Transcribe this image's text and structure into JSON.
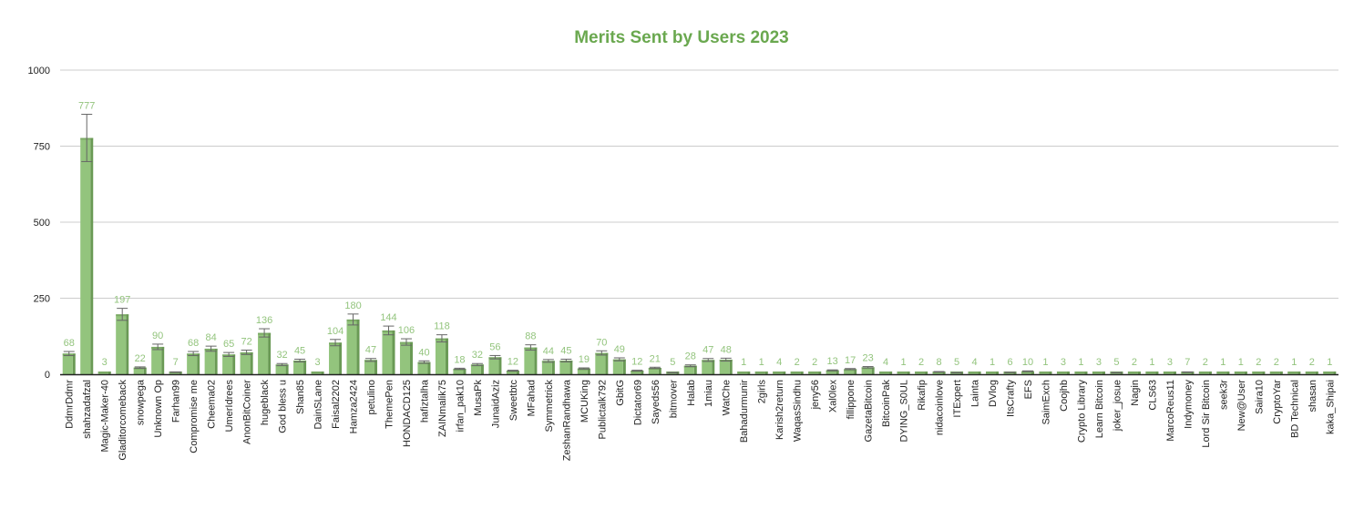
{
  "chart_data": {
    "type": "bar",
    "title": "Merits Sent by Users 2023",
    "xlabel": "",
    "ylabel": "",
    "ylim": [
      0,
      1000
    ],
    "yticks": [
      0,
      250,
      500,
      750,
      1000
    ],
    "grid": true,
    "legend": "none",
    "error_bars": true,
    "data_labels": true,
    "colors": {
      "bar_fill": "#93c47d",
      "bar_shadow": "#6a9a55",
      "title": "#6aa84f",
      "data_label": "#93c47d",
      "error_bar": "#666666",
      "grid": "#cccccc",
      "axis": "#222222"
    },
    "categories": [
      "DdmrDdmr",
      "shahzadafzal",
      "Magic-Maker-40",
      "Gladitorcomeback",
      "snowpega",
      "Unknown Op",
      "Farhan99",
      "Compromise me",
      "Cheema02",
      "UmerIdrees",
      "AnonBitCoiner",
      "hugeblack",
      "God bless u",
      "Shan85",
      "DainSLane",
      "Faisal2202",
      "Hamza2424",
      "petulino",
      "ThemePen",
      "HONDACD125",
      "hafiztalha",
      "ZAINmalik75",
      "irfan_pak10",
      "MusaPk",
      "JunaidAziz",
      "Sweetbtc",
      "MFahad",
      "Symmetrick",
      "ZeshanRandhawa",
      "MCUKing",
      "Publictalk792",
      "GbitG",
      "Dictator69",
      "Sayeds56",
      "bitmover",
      "Halab",
      "1miau",
      "WatChe",
      "Bahadurmunir",
      "2girls",
      "Karish2return",
      "WaqasSindhu",
      "jeny56",
      "Xal0lex",
      "fillippone",
      "GazetaBitcoin",
      "BitcoinPak",
      "DYING_S0UL",
      "Rikafip",
      "nidacoinlove",
      "ITExpert",
      "Lainta",
      "DVlog",
      "ItsCrafty",
      "EFS",
      "SaimExch",
      "Coojhb",
      "Crypto Library",
      "Learn Bitcoin",
      "joker_josue",
      "Nagin",
      "CLS63",
      "MarcoReus11",
      "Indymoney",
      "Lord Sir Bitcoin",
      "seek3r",
      "New@User",
      "Saira10",
      "CryptoYar",
      "BD Technical",
      "shasan",
      "kaka_Shipai"
    ],
    "values": [
      68,
      777,
      3,
      197,
      22,
      90,
      7,
      68,
      84,
      65,
      72,
      136,
      32,
      45,
      3,
      104,
      180,
      47,
      144,
      106,
      40,
      118,
      18,
      32,
      56,
      12,
      88,
      44,
      45,
      19,
      70,
      49,
      12,
      21,
      5,
      28,
      47,
      48,
      1,
      1,
      4,
      2,
      2,
      13,
      17,
      23,
      4,
      1,
      2,
      8,
      5,
      4,
      1,
      6,
      10,
      1,
      3,
      1,
      3,
      5,
      2,
      1,
      3,
      7,
      2,
      1,
      1,
      2,
      2,
      1,
      2,
      1
    ],
    "value_labels": [
      "68",
      "777",
      "3",
      "197",
      "22",
      "90",
      "7",
      "68",
      "84",
      "65",
      "72",
      "136",
      "32",
      "45",
      "3",
      "104",
      "180",
      "47",
      "144",
      "106",
      "40",
      "118",
      "18",
      "32",
      "56",
      "12",
      "88",
      "44",
      "45",
      "19",
      "70",
      "49",
      "12",
      "21",
      "5",
      "28",
      "47",
      "48",
      "1",
      "1",
      "4",
      "2",
      "2",
      "13",
      "17",
      "23",
      "4",
      "1",
      "2",
      "8",
      "5",
      "4",
      "1",
      "6",
      "10",
      "1",
      "3",
      "1",
      "3",
      "5",
      "2",
      "1",
      "3",
      "7",
      "2",
      "1",
      "1",
      "2",
      "2",
      "1",
      "2",
      "1"
    ]
  }
}
